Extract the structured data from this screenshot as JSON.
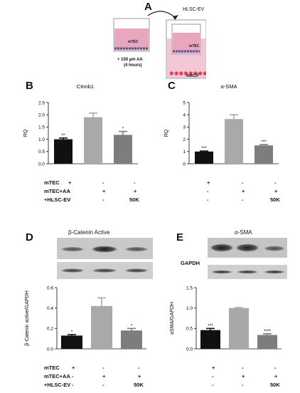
{
  "panelA": {
    "letter": "A",
    "hlsc_label": "HLSC-EV",
    "well1_cells": "mTEC",
    "well2_cells": "mTEC",
    "treatment_line1": "+ 100 µm AA",
    "treatment_line2": "(4 hours)",
    "mkcf_label": "mkCF"
  },
  "colors": {
    "black_bar": "#111111",
    "light_bar": "#a9a9a9",
    "mid_bar": "#7d7d7d",
    "medium_pink": "#e9a7bf",
    "cell_blue": "#3f5bb0",
    "star_red": "#e0243f"
  },
  "conditions": {
    "top": {
      "rows": [
        {
          "label": "mTEC",
          "values": [
            "+",
            "-",
            "-"
          ]
        },
        {
          "label": "mTEC+AA",
          "values": [
            "-",
            "+",
            "+"
          ]
        },
        {
          "label": "+HLSC-EV",
          "values": [
            "-",
            "-",
            "50K"
          ]
        }
      ]
    },
    "bottom": {
      "rows": [
        {
          "label": "mTEC",
          "values": [
            "+",
            "-",
            "-"
          ]
        },
        {
          "label": "mTEC+AA",
          "values": [
            "-",
            "+",
            "+"
          ]
        },
        {
          "label": "+HLSC-EV",
          "values": [
            "-",
            "-",
            "50K"
          ]
        }
      ]
    }
  },
  "blots": {
    "D_label": "",
    "E_gapdh_label": "GAPDH"
  },
  "chart_data": [
    {
      "letter": "B",
      "type": "bar",
      "title": "Ctnnb1",
      "ylabel": "RQ",
      "ylim": [
        0,
        2.5
      ],
      "yticks": [
        "0.0",
        "0.5",
        "1.0",
        "1.5",
        "2.0",
        "2.5"
      ],
      "ytick_values": [
        0,
        0.5,
        1.0,
        1.5,
        2.0,
        2.5
      ],
      "values": [
        1.0,
        1.9,
        1.18
      ],
      "errors": [
        0.05,
        0.17,
        0.14
      ],
      "significance": [
        "**",
        "",
        "*"
      ]
    },
    {
      "letter": "C",
      "type": "bar",
      "title": "α-SMA",
      "ylabel": "RQ",
      "ylim": [
        0,
        5
      ],
      "yticks": [
        "0",
        "1",
        "2",
        "3",
        "4",
        "5"
      ],
      "ytick_values": [
        0,
        1,
        2,
        3,
        4,
        5
      ],
      "values": [
        1.0,
        3.65,
        1.5
      ],
      "errors": [
        0.04,
        0.35,
        0.07
      ],
      "significance": [
        "***",
        "",
        "***"
      ]
    },
    {
      "letter": "D",
      "type": "bar",
      "title": "β-Catenin Active",
      "ylabel": "β-Catenin active/GAPDH",
      "ylim": [
        0,
        0.6
      ],
      "yticks": [
        "0.0",
        "0.2",
        "0.4",
        "0.6"
      ],
      "ytick_values": [
        0,
        0.2,
        0.4,
        0.6
      ],
      "values": [
        0.13,
        0.42,
        0.18
      ],
      "errors": [
        0.01,
        0.08,
        0.02
      ],
      "significance": [
        "*",
        "",
        "*"
      ]
    },
    {
      "letter": "E",
      "type": "bar",
      "title": "α-SMA",
      "ylabel": "aSMA/GAPDH",
      "ylim": [
        0,
        1.5
      ],
      "yticks": [
        "0.0",
        "0.5",
        "1.0",
        "1.5"
      ],
      "ytick_values": [
        0,
        0.5,
        1.0,
        1.5
      ],
      "values": [
        0.46,
        1.0,
        0.34
      ],
      "errors": [
        0.04,
        0.01,
        0.03
      ],
      "significance": [
        "***",
        "",
        "****"
      ]
    }
  ]
}
